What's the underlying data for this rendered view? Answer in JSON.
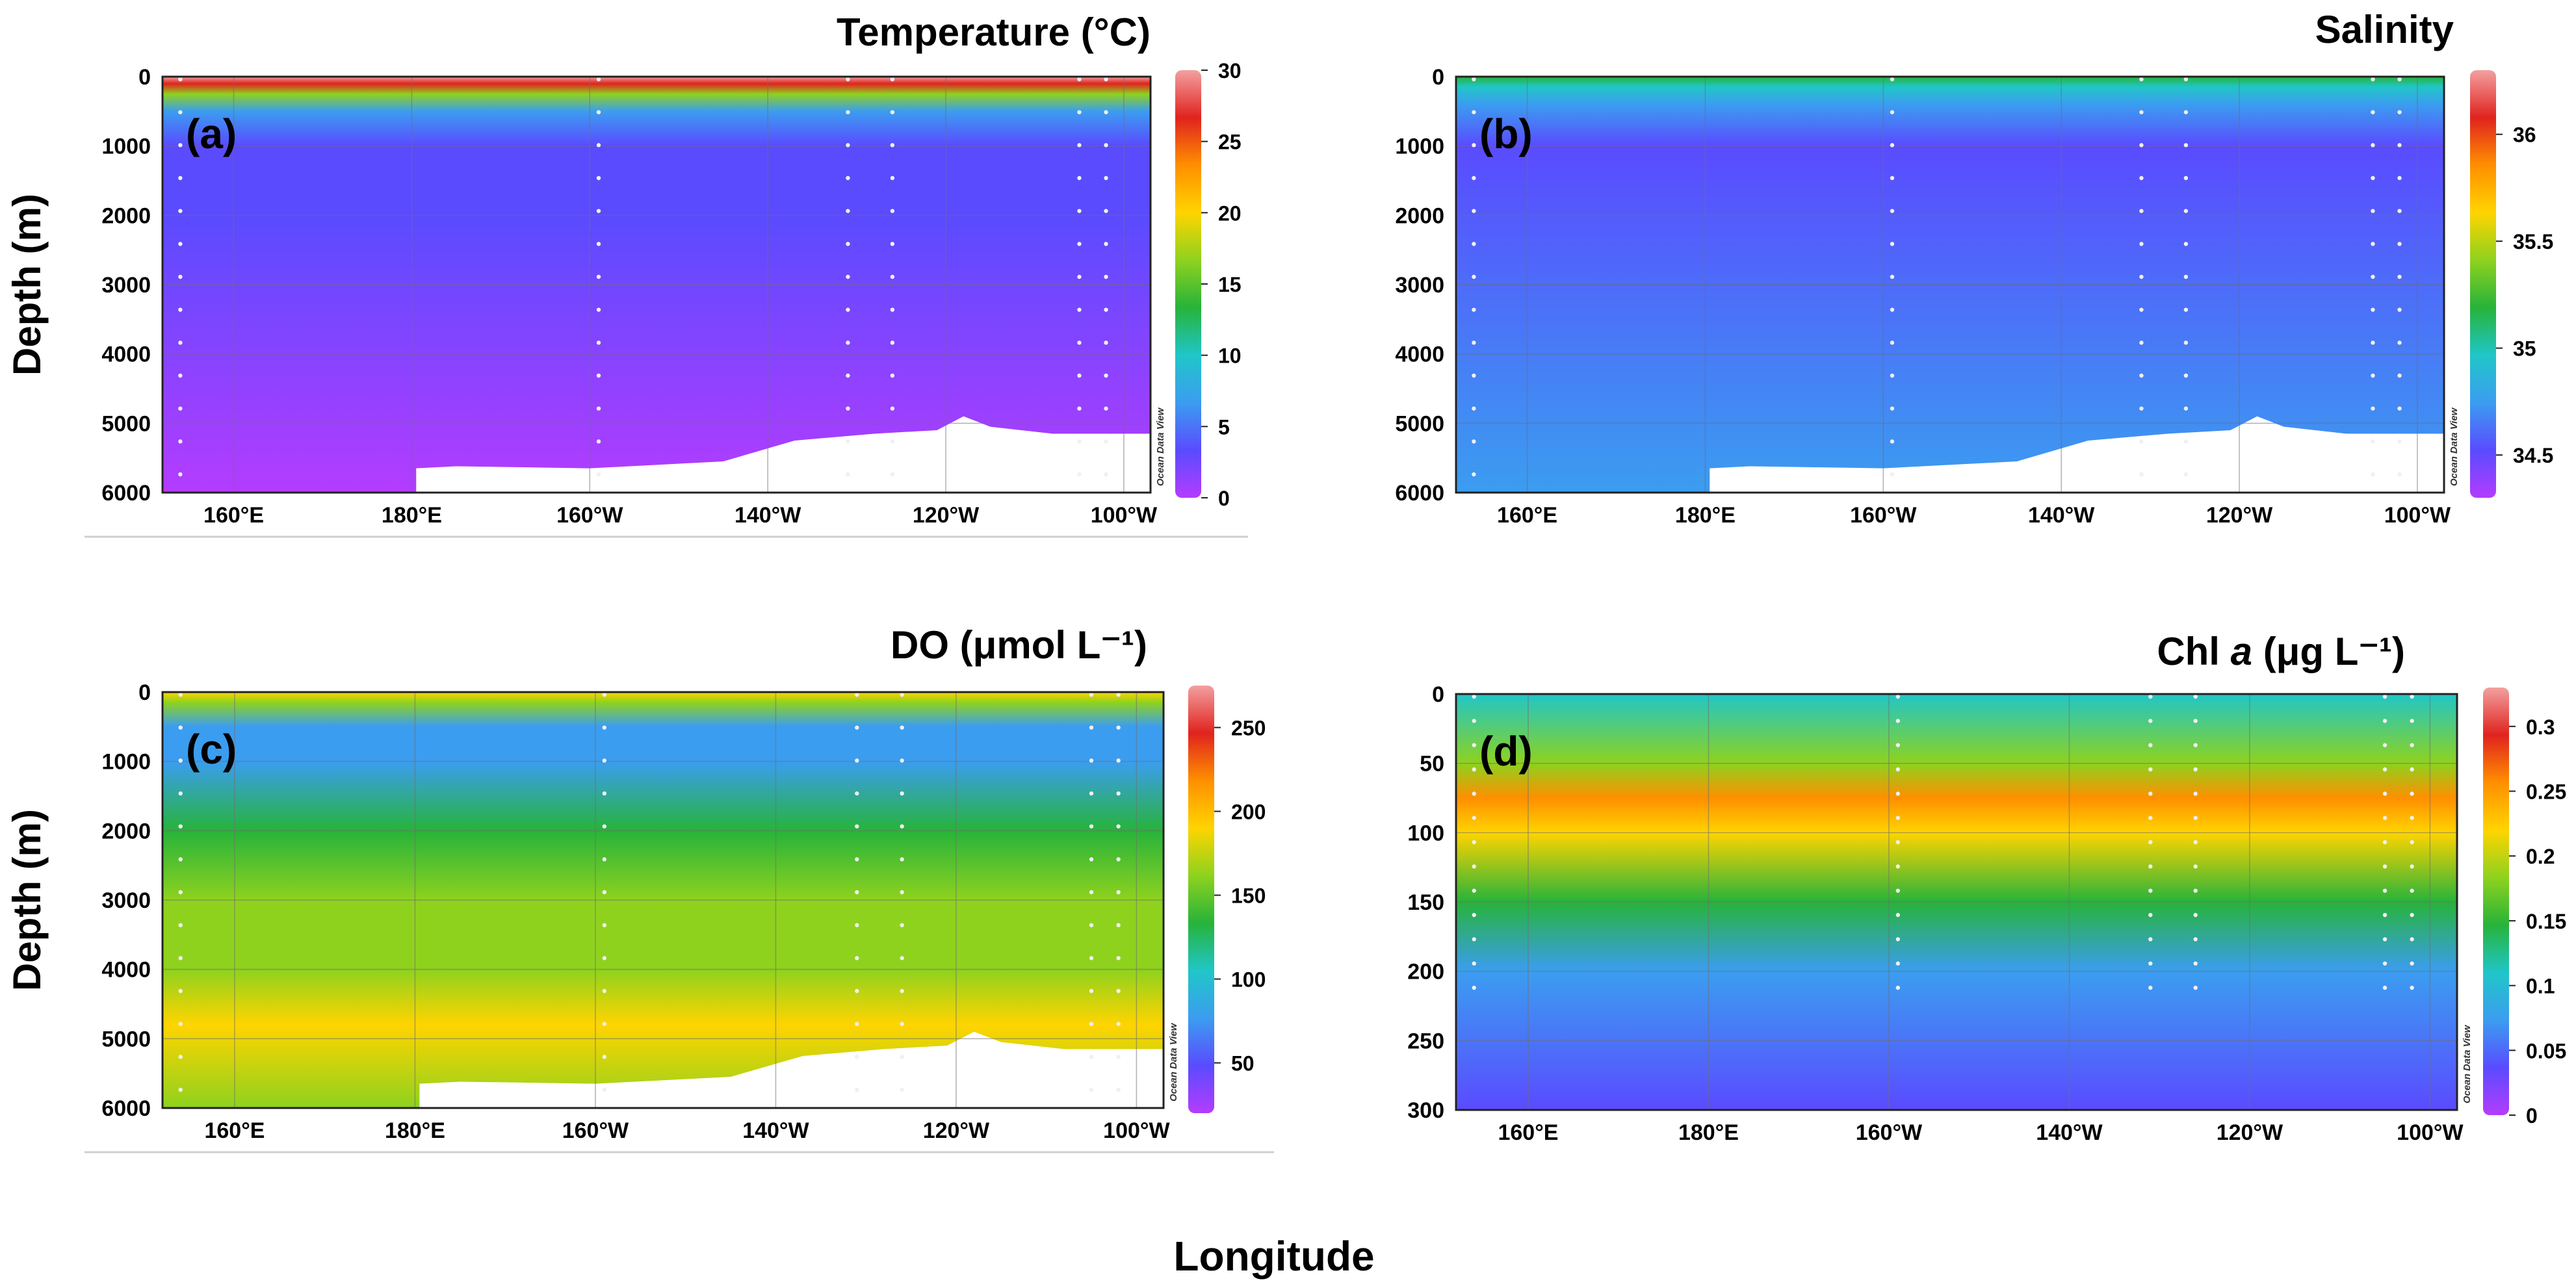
{
  "figure": {
    "xlabel": "Longitude",
    "ylabel_left": "Depth (m)",
    "watermark": "Ocean Data View"
  },
  "colors": {
    "scale": [
      "#b43cff",
      "#5a4bff",
      "#3b9df0",
      "#20c6c8",
      "#27b33a",
      "#8ed21e",
      "#ffd400",
      "#ff8f00",
      "#e0231e",
      "#f2a0a0"
    ],
    "seafloor": "#ffffff",
    "grid": "#6f6f6f",
    "station_dot": "#f0f0f0"
  },
  "chart_data": [
    {
      "type": "heatmap",
      "panel": "(a)",
      "title": "Temperature (°C)",
      "ylabel": "Depth (m)",
      "xlabel": "Longitude",
      "xlim": [
        152,
        263
      ],
      "ylim": [
        6000,
        0
      ],
      "xticks": [
        160,
        180,
        200,
        220,
        240,
        260
      ],
      "xtick_labels": [
        "160°E",
        "180°E",
        "160°W",
        "140°W",
        "120°W",
        "100°W"
      ],
      "yticks": [
        0,
        1000,
        2000,
        3000,
        4000,
        5000,
        6000
      ],
      "ytick_labels": [
        "0",
        "1000",
        "2000",
        "3000",
        "4000",
        "5000",
        "6000"
      ],
      "colorbar": {
        "min": 0,
        "max": 30,
        "ticks": [
          "0",
          "5",
          "10",
          "15",
          "20",
          "25",
          "30"
        ]
      },
      "stations_lon": [
        154,
        201,
        229,
        234,
        255,
        258
      ],
      "profile": [
        {
          "depth": 0,
          "value": 29
        },
        {
          "depth": 100,
          "value": 25
        },
        {
          "depth": 250,
          "value": 15
        },
        {
          "depth": 500,
          "value": 7
        },
        {
          "depth": 1000,
          "value": 4
        },
        {
          "depth": 2000,
          "value": 2
        },
        {
          "depth": 6000,
          "value": 1.2
        }
      ]
    },
    {
      "type": "heatmap",
      "panel": "(b)",
      "title": "Salinity",
      "ylabel": "",
      "xlabel": "Longitude",
      "xlim": [
        152,
        263
      ],
      "ylim": [
        6000,
        0
      ],
      "xticks": [
        160,
        180,
        200,
        220,
        240,
        260
      ],
      "xtick_labels": [
        "160°E",
        "180°E",
        "160°W",
        "140°W",
        "120°W",
        "100°W"
      ],
      "yticks": [
        0,
        1000,
        2000,
        3000,
        4000,
        5000,
        6000
      ],
      "ytick_labels": [
        "0",
        "1000",
        "2000",
        "3000",
        "4000",
        "5000",
        "6000"
      ],
      "colorbar": {
        "min": 34.3,
        "max": 36.3,
        "ticks": [
          "34.5",
          "35",
          "35.5",
          "36"
        ]
      },
      "stations_lon": [
        154,
        201,
        229,
        234,
        255,
        258
      ],
      "profile": [
        {
          "depth": 0,
          "value": 35.1
        },
        {
          "depth": 150,
          "value": 34.9
        },
        {
          "depth": 400,
          "value": 34.65
        },
        {
          "depth": 1000,
          "value": 34.55
        },
        {
          "depth": 6000,
          "value": 34.7
        }
      ]
    },
    {
      "type": "heatmap",
      "panel": "(c)",
      "title": "DO (μmol L⁻¹)",
      "ylabel": "Depth (m)",
      "xlabel": "Longitude",
      "xlim": [
        152,
        263
      ],
      "ylim": [
        6000,
        0
      ],
      "xticks": [
        160,
        180,
        200,
        220,
        240,
        260
      ],
      "xtick_labels": [
        "160°E",
        "180°E",
        "160°W",
        "140°W",
        "120°W",
        "100°W"
      ],
      "yticks": [
        0,
        1000,
        2000,
        3000,
        4000,
        5000,
        6000
      ],
      "ytick_labels": [
        "0",
        "1000",
        "2000",
        "3000",
        "4000",
        "5000",
        "6000"
      ],
      "colorbar": {
        "min": 20,
        "max": 275,
        "ticks": [
          "50",
          "100",
          "150",
          "200",
          "250"
        ]
      },
      "stations_lon": [
        154,
        201,
        229,
        234,
        255,
        258
      ],
      "profile": [
        {
          "depth": 0,
          "value": 200
        },
        {
          "depth": 150,
          "value": 160
        },
        {
          "depth": 500,
          "value": 70
        },
        {
          "depth": 1000,
          "value": 90
        },
        {
          "depth": 2000,
          "value": 130
        },
        {
          "depth": 3000,
          "value": 150
        },
        {
          "depth": 4000,
          "value": 160
        },
        {
          "depth": 4800,
          "value": 180
        },
        {
          "depth": 6000,
          "value": 150
        }
      ]
    },
    {
      "type": "heatmap",
      "panel": "(d)",
      "title": "Chl a (μg L⁻¹)",
      "ylabel": "",
      "xlabel": "Longitude",
      "xlim": [
        152,
        263
      ],
      "ylim": [
        300,
        0
      ],
      "xticks": [
        160,
        180,
        200,
        220,
        240,
        260
      ],
      "xtick_labels": [
        "160°E",
        "180°E",
        "160°W",
        "140°W",
        "120°W",
        "100°W"
      ],
      "yticks": [
        0,
        50,
        100,
        150,
        200,
        250,
        300
      ],
      "ytick_labels": [
        "0",
        "50",
        "100",
        "150",
        "200",
        "250",
        "300"
      ],
      "colorbar": {
        "min": 0,
        "max": 0.33,
        "ticks": [
          "0",
          "0.05",
          "0.1",
          "0.15",
          "0.2",
          "0.25",
          "0.3"
        ]
      },
      "stations_lon": [
        154,
        201,
        229,
        234,
        255,
        258
      ],
      "profile": [
        {
          "depth": 0,
          "value": 0.12
        },
        {
          "depth": 50,
          "value": 0.2
        },
        {
          "depth": 75,
          "value": 0.26
        },
        {
          "depth": 100,
          "value": 0.22
        },
        {
          "depth": 150,
          "value": 0.13
        },
        {
          "depth": 200,
          "value": 0.07
        },
        {
          "depth": 300,
          "value": 0.02
        }
      ]
    }
  ]
}
